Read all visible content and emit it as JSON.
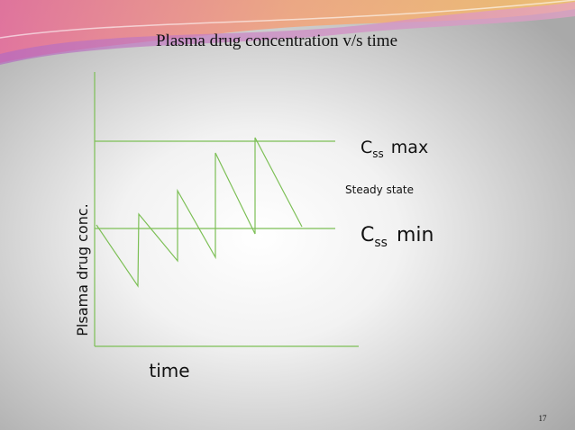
{
  "title": "Plasma drug concentration  v/s  time",
  "y_axis_label": "Plsama drug conc.",
  "x_axis_label": "time",
  "css_max": {
    "symbol": "C",
    "subscript": "ss",
    "label": "max"
  },
  "css_min": {
    "symbol": "C",
    "subscript": "ss",
    "label": "min"
  },
  "annotation": "Steady state",
  "page_number": "17"
}
